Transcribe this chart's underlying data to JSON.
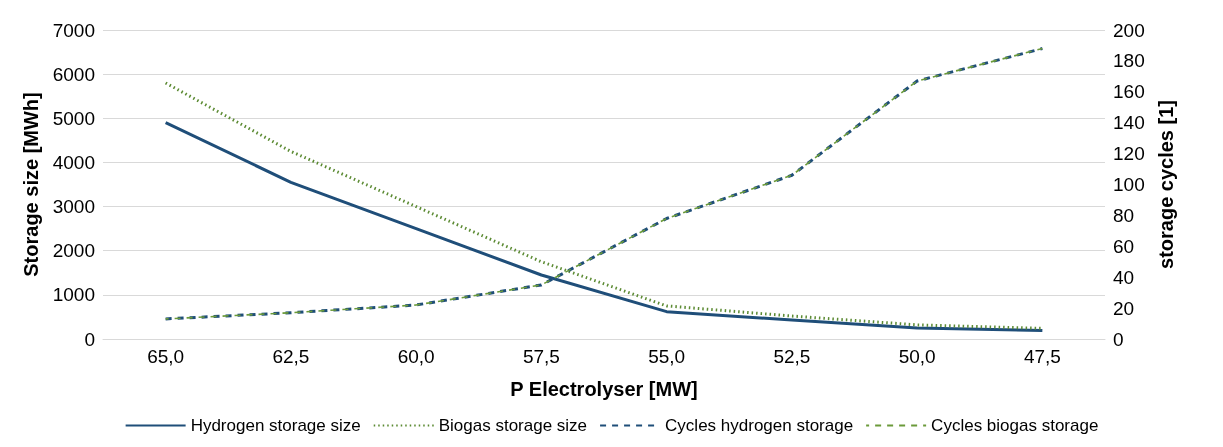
{
  "chart_data": {
    "type": "line",
    "xlabel": "P Electrolyser [MW]",
    "ylabel": "Storage size [MWh]",
    "y2label": "storage cycles [1]",
    "categories": [
      "65,0",
      "62,5",
      "60,0",
      "57,5",
      "55,0",
      "52,5",
      "50,0",
      "47,5"
    ],
    "series": [
      {
        "name": "Hydrogen storage size",
        "color": "#1f4e79",
        "line_style": "solid",
        "values": [
          4900,
          3550,
          2500,
          1450,
          620,
          430,
          250,
          190
        ]
      },
      {
        "name": "Biogas storage size",
        "color": "#5b8a32",
        "line_style": "dotted",
        "values": [
          5800,
          4250,
          3000,
          1750,
          750,
          520,
          320,
          240
        ]
      },
      {
        "name": "Cycles hydrogen storage",
        "color": "#1f4e79",
        "line_style": "dashed",
        "axis": "y2",
        "values": [
          13,
          17,
          22,
          35,
          78,
          106,
          167,
          188
        ]
      },
      {
        "name": "Cycles biogas storage",
        "color": "#6b9a3a",
        "line_style": "dashed",
        "axis": "y2",
        "values": [
          13,
          17,
          22,
          35,
          78,
          106,
          167,
          188
        ]
      }
    ],
    "ylim": [
      0,
      7000
    ],
    "yticks": [
      0,
      1000,
      2000,
      3000,
      4000,
      5000,
      6000,
      7000
    ],
    "y2lim": [
      0,
      200
    ],
    "y2ticks": [
      0,
      20,
      40,
      60,
      80,
      100,
      120,
      140,
      160,
      180,
      200
    ],
    "grid": "y",
    "legend": "bottom",
    "marker": "none"
  }
}
